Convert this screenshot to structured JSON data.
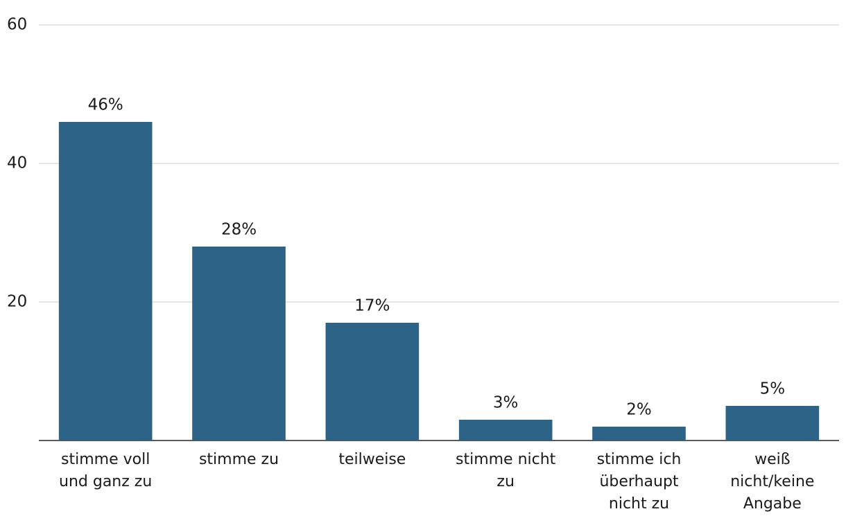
{
  "chart_data": {
    "type": "bar",
    "categories": [
      "stimme voll\nund ganz zu",
      "stimme zu",
      "teilweise",
      "stimme nicht\nzu",
      "stimme ich\nüberhaupt\nnicht zu",
      "weiß\nnicht/keine\nAngabe"
    ],
    "values": [
      46,
      28,
      17,
      3,
      2,
      5
    ],
    "value_labels": [
      "46%",
      "28%",
      "17%",
      "3%",
      "2%",
      "5%"
    ],
    "color": "#2c6387",
    "ylim": [
      0,
      60
    ],
    "yticks": [
      20,
      40,
      60
    ],
    "grid": true
  }
}
